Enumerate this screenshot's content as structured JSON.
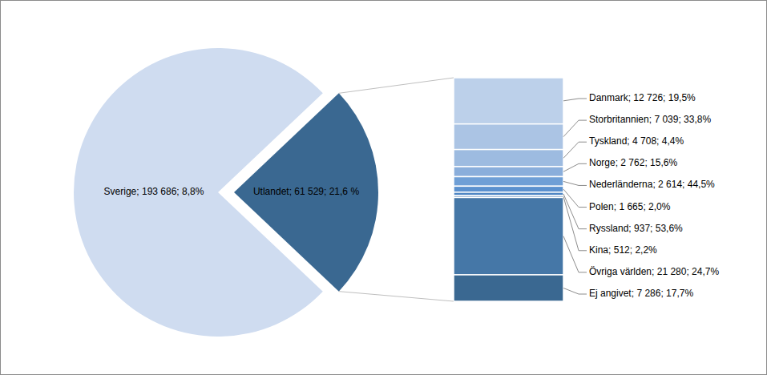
{
  "chart_data": {
    "type": "pie_of_bar",
    "separator": "; ",
    "categories": [
      "Sverige",
      "Utlandet"
    ],
    "values": [
      193686,
      61529
    ],
    "value_labels": [
      "193 686",
      "61 529"
    ],
    "changes": [
      8.8,
      21.6
    ],
    "change_labels": [
      "8,8%",
      "21,6 %"
    ],
    "colors": [
      "#cfdcf0",
      "#3a6891"
    ],
    "data_labels": true,
    "breakdown": {
      "categories": [
        "Danmark",
        "Storbritannien",
        "Tyskland",
        "Norge",
        "Nederländerna",
        "Polen",
        "Ryssland",
        "Kina",
        "Övriga världen",
        "Ej angivet"
      ],
      "values": [
        12726,
        7039,
        4708,
        2762,
        2614,
        1665,
        937,
        512,
        21280,
        7286
      ],
      "value_labels": [
        "12 726",
        "7 039",
        "4 708",
        "2 762",
        "2 614",
        "1 665",
        "937",
        "512",
        "21 280",
        "7 286"
      ],
      "changes": [
        19.5,
        33.8,
        4.4,
        15.6,
        44.5,
        2.0,
        53.6,
        2.2,
        24.7,
        17.7
      ],
      "change_labels": [
        "19,5%",
        "33,8%",
        "4,4%",
        "15,6%",
        "44,5%",
        "2,0%",
        "53,6%",
        "2,2%",
        "24,7%",
        "17,7%"
      ],
      "colors": [
        "#bcd0ea",
        "#abc4e4",
        "#9dbbe0",
        "#8aaedb",
        "#6f9fd6",
        "#5b91cf",
        "#4f86c4",
        "#4a7db5",
        "#4577a7",
        "#3a6891"
      ]
    }
  }
}
